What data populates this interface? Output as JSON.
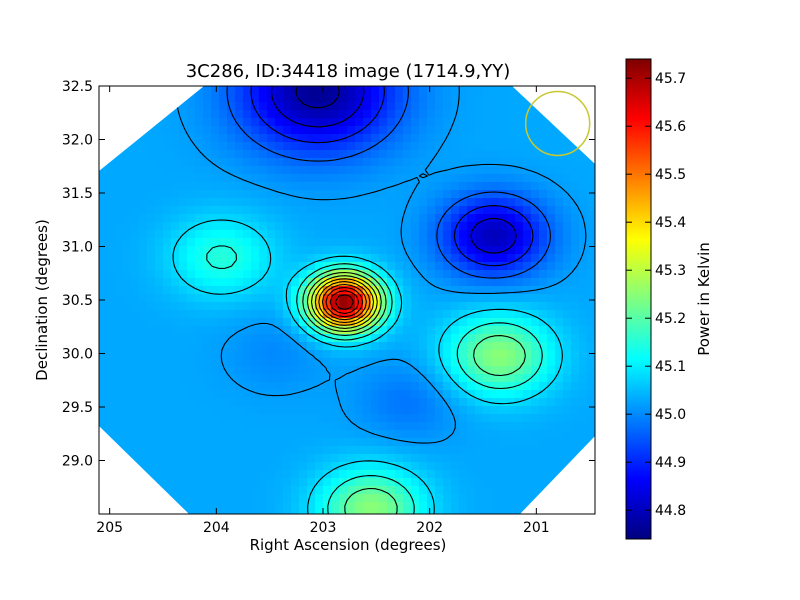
{
  "chart_data": {
    "type": "heatmap",
    "title": "3C286, ID:34418 image (1714.9,YY)",
    "xlabel": "Right Ascension (degrees)",
    "ylabel": "Declination (degrees)",
    "xlim": [
      205.1,
      200.45
    ],
    "ylim": [
      28.5,
      32.5
    ],
    "x_ticks": [
      205,
      204,
      203,
      202,
      201
    ],
    "x_tick_labels": [
      "205",
      "204",
      "203",
      "202",
      "201"
    ],
    "y_ticks": [
      29.0,
      29.5,
      30.0,
      30.5,
      31.0,
      31.5,
      32.0,
      32.5
    ],
    "y_tick_labels": [
      "29.0",
      "29.5",
      "30.0",
      "30.5",
      "31.0",
      "31.5",
      "32.0",
      "32.5"
    ],
    "colorbar": {
      "label": "Power in Kelvin",
      "range": [
        44.74,
        45.74
      ],
      "ticks": [
        44.8,
        44.9,
        45.0,
        45.1,
        45.2,
        45.3,
        45.4,
        45.5,
        45.6,
        45.7
      ],
      "tick_labels": [
        "44.8",
        "44.9",
        "45.0",
        "45.1",
        "45.2",
        "45.3",
        "45.4",
        "45.5",
        "45.6",
        "45.7"
      ],
      "colormap": "jet"
    },
    "features": [
      {
        "kind": "peak",
        "ra": 202.8,
        "dec": 30.48,
        "value": 45.73
      },
      {
        "kind": "local max",
        "ra": 201.35,
        "dec": 29.98,
        "value": 45.25
      },
      {
        "kind": "local max",
        "ra": 203.95,
        "dec": 30.9,
        "value": 45.15
      },
      {
        "kind": "local max",
        "ra": 202.55,
        "dec": 28.55,
        "value": 45.25
      },
      {
        "kind": "minimum",
        "ra": 201.4,
        "dec": 31.1,
        "value": 44.8
      },
      {
        "kind": "minimum",
        "ra": 203.05,
        "dec": 32.45,
        "value": 44.76
      },
      {
        "kind": "local min",
        "ra": 202.2,
        "dec": 29.55,
        "value": 44.98
      },
      {
        "kind": "local min",
        "ra": 203.45,
        "dec": 30.0,
        "value": 45.0
      }
    ],
    "beam_circle": {
      "ra": 200.8,
      "dec": 32.15,
      "color": "#c8c832"
    },
    "grid": false
  }
}
